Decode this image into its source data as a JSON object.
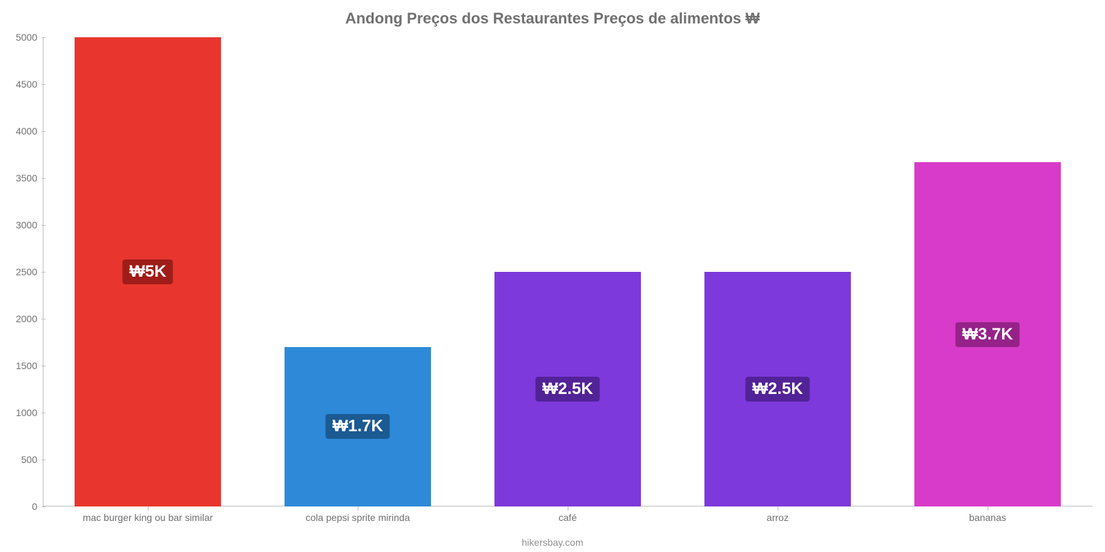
{
  "chart": {
    "type": "bar",
    "title": "Andong Preços dos Restaurantes Preços de alimentos ₩",
    "title_fontsize": 22,
    "title_color": "#707070",
    "background_color": "#ffffff",
    "axis_line_color": "#c0c0c0",
    "tick_label_color": "#707070",
    "tick_label_fontsize": 14,
    "ylim": [
      0,
      5000
    ],
    "ytick_step": 500,
    "yticks": [
      0,
      500,
      1000,
      1500,
      2000,
      2500,
      3000,
      3500,
      4000,
      4500,
      5000
    ],
    "bar_width": 0.7,
    "value_label_fontsize": 24,
    "categories": [
      "mac burger king ou bar similar",
      "cola pepsi sprite mirinda",
      "café",
      "arroz",
      "bananas"
    ],
    "values": [
      5000,
      1700,
      2500,
      2500,
      3666
    ],
    "value_labels": [
      "₩5K",
      "₩1.7K",
      "₩2.5K",
      "₩2.5K",
      "₩3.7K"
    ],
    "bar_colors": [
      "#e8362f",
      "#2e8ad8",
      "#7d39db",
      "#7d39db",
      "#d83bc9"
    ],
    "label_bg_colors": [
      "#9f1d18",
      "#1b5a93",
      "#522297",
      "#522297",
      "#962289"
    ],
    "footer": "hikersbay.com",
    "footer_color": "#909090",
    "footer_fontsize": 14
  }
}
